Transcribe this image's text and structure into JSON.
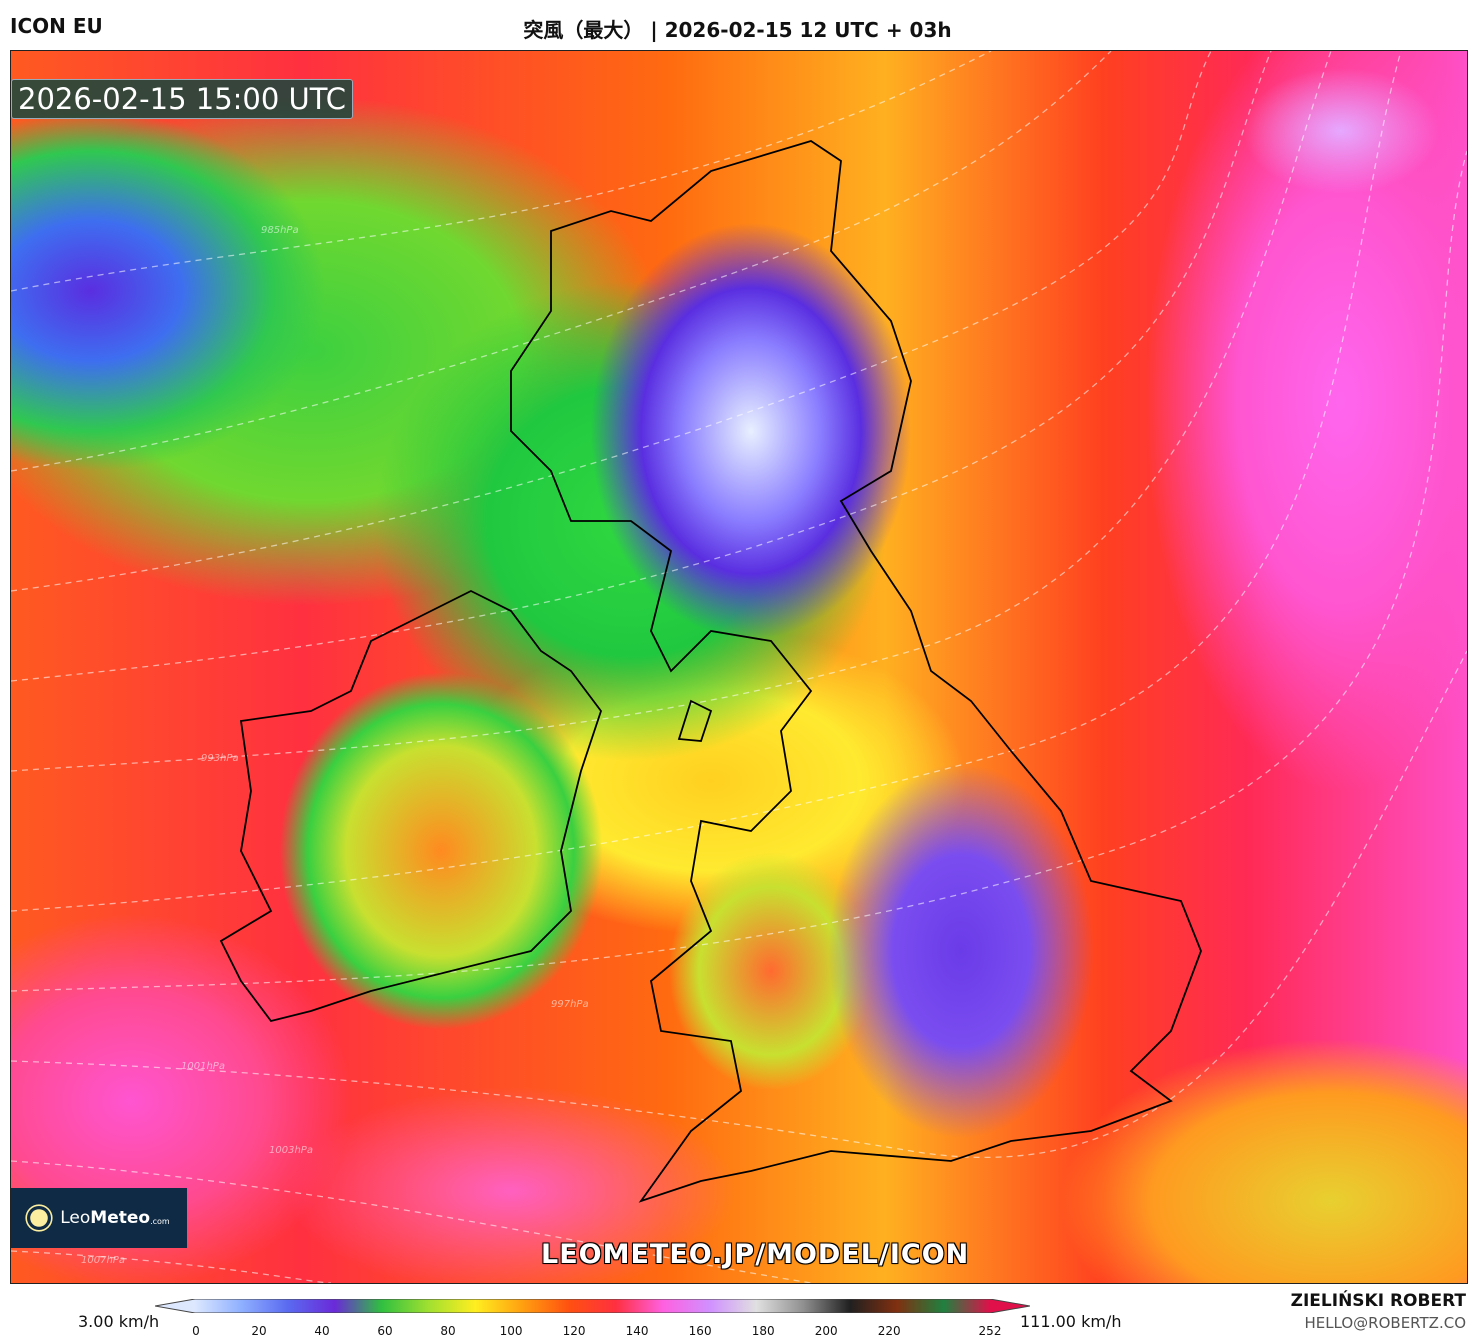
{
  "header": {
    "model": "ICON EU",
    "title": "突風（最大） | 2026-02-15 12 UTC + 03h"
  },
  "map": {
    "timestamp": "2026-02-15 15:00 UTC",
    "isobar_labels": [
      "985hPa",
      "993hPa",
      "997hPa",
      "1001hPa",
      "1003hPa",
      "1007hPa"
    ],
    "logo_text": {
      "leo": "Leo",
      "meteo": "Meteo",
      "com": ".com"
    },
    "watermark": "LEOMETEO.JP/MODEL/ICON"
  },
  "colorbar": {
    "min_label": "3.00 km/h",
    "max_label": "111.00 km/h",
    "ticks": [
      "0",
      "20",
      "40",
      "60",
      "80",
      "100",
      "120",
      "140",
      "160",
      "180",
      "200",
      "220",
      "252"
    ],
    "tick_values": [
      0,
      20,
      40,
      60,
      80,
      100,
      120,
      140,
      160,
      180,
      200,
      220,
      252
    ],
    "range": [
      0,
      252
    ],
    "colors": [
      "#dde8ff",
      "#8fb0ff",
      "#5a6af0",
      "#6a2ad8",
      "#30c040",
      "#a0e030",
      "#ffee20",
      "#ffa010",
      "#ff5010",
      "#ff3040",
      "#ff60e0",
      "#d090ff",
      "#e0e0e0",
      "#909090",
      "#202020",
      "#803010",
      "#208040",
      "#e0104a"
    ]
  },
  "credits": {
    "author": "ZIELIŃSKI ROBERT",
    "email": "HELLO@ROBERTZ.CO"
  }
}
